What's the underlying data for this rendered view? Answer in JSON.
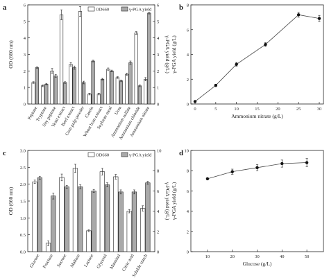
{
  "chart_data": [
    {
      "panel": "a",
      "type": "bar",
      "title": "",
      "xlabel": "",
      "ylabel": "OD (660 nm)",
      "y2label": "γ-PGA yield (g/L)",
      "ylim": [
        0,
        6
      ],
      "y2lim": [
        0,
        6
      ],
      "yticks": [
        0,
        1,
        2,
        3,
        4,
        5,
        6
      ],
      "y2ticks": [
        0,
        1,
        2,
        3,
        4,
        5,
        6
      ],
      "legend_position": "top",
      "categories": [
        "Peptone",
        "Tryptone",
        "Soy peptone",
        "Yeast extract",
        "Beef extract",
        "Corn pulp powder",
        "Casein",
        "Wheat bran extract",
        "Soybean meal",
        "Urea",
        "Ammonium sulfate",
        "Ammonium chloride",
        "Ammonium nitrate"
      ],
      "series": [
        {
          "name": "OD660",
          "axis": "left",
          "color": "#ffffff",
          "values": [
            1.3,
            1.1,
            2.0,
            5.4,
            2.4,
            5.6,
            0.6,
            0.6,
            2.1,
            1.6,
            1.8,
            4.3,
            1.5
          ],
          "errors": [
            0.05,
            0.05,
            0.15,
            0.3,
            0.1,
            0.3,
            0.05,
            0.05,
            0.08,
            0.05,
            0.07,
            0.08,
            0.1
          ]
        },
        {
          "name": "γ-PGA yield",
          "axis": "right",
          "color": "#a9a9a9",
          "values": [
            2.2,
            1.2,
            1.7,
            1.3,
            2.2,
            1.3,
            2.6,
            1.5,
            2.0,
            1.4,
            2.5,
            1.1,
            5.5
          ],
          "errors": [
            0.05,
            0.05,
            0.08,
            0.05,
            0.1,
            0.08,
            0.05,
            0.05,
            0.05,
            0.05,
            0.1,
            0.05,
            0.05
          ]
        }
      ]
    },
    {
      "panel": "b",
      "type": "line",
      "title": "",
      "xlabel": "Ammonium nitrate (g/L)",
      "ylabel": "γ-PGA yield (g/L)",
      "xlim": [
        0,
        30
      ],
      "ylim": [
        0,
        8
      ],
      "xticks": [
        0,
        5,
        10,
        15,
        20,
        25,
        30
      ],
      "yticks": [
        0,
        2,
        4,
        6,
        8
      ],
      "x": [
        0,
        5,
        10,
        17,
        25,
        30
      ],
      "series": [
        {
          "values": [
            0.2,
            1.5,
            3.2,
            4.8,
            7.2,
            6.9
          ],
          "errors": [
            0.05,
            0.1,
            0.15,
            0.15,
            0.2,
            0.25
          ]
        }
      ]
    },
    {
      "panel": "c",
      "type": "bar",
      "title": "",
      "xlabel": "",
      "ylabel": "OD (660 nm)",
      "y2label": "γ-PGA yield (g/L)",
      "ylim": [
        0,
        3.0
      ],
      "y2lim": [
        0,
        10
      ],
      "yticks": [
        0.0,
        0.5,
        1.0,
        1.5,
        2.0,
        2.5,
        3.0
      ],
      "y2ticks": [
        0,
        2,
        4,
        6,
        8,
        10
      ],
      "legend_position": "top",
      "categories": [
        "Glucose",
        "Fructose",
        "Sucrose",
        "Maltose",
        "Lactose",
        "Glycerol",
        "Mannitol",
        "Citric acid",
        "Soluble starch"
      ],
      "series": [
        {
          "name": "OD660",
          "axis": "left",
          "color": "#ffffff",
          "values": [
            2.07,
            0.25,
            2.2,
            2.47,
            0.62,
            2.37,
            2.22,
            1.2,
            1.28
          ],
          "errors": [
            0.05,
            0.07,
            0.1,
            0.12,
            0.03,
            0.1,
            0.07,
            0.05,
            0.08
          ]
        },
        {
          "name": "γ-PGA yield",
          "axis": "right",
          "color": "#a9a9a9",
          "values": [
            7.3,
            5.5,
            6.4,
            6.4,
            6.0,
            6.6,
            5.9,
            5.9,
            6.8
          ],
          "errors": [
            0.15,
            0.3,
            0.15,
            0.2,
            0.15,
            0.2,
            0.2,
            0.2,
            0.15
          ]
        }
      ]
    },
    {
      "panel": "d",
      "type": "line",
      "title": "",
      "xlabel": "Glucose (g/L)",
      "ylabel": "γ-PGA yield (g/L)",
      "xlim": [
        5,
        55
      ],
      "ylim": [
        0,
        10
      ],
      "xticks": [
        10,
        20,
        30,
        40,
        50
      ],
      "yticks": [
        0,
        2,
        4,
        6,
        8,
        10
      ],
      "x": [
        10,
        20,
        30,
        40,
        50
      ],
      "series": [
        {
          "values": [
            7.2,
            7.9,
            8.3,
            8.7,
            8.8
          ],
          "errors": [
            0.1,
            0.25,
            0.3,
            0.35,
            0.4
          ]
        }
      ]
    }
  ]
}
